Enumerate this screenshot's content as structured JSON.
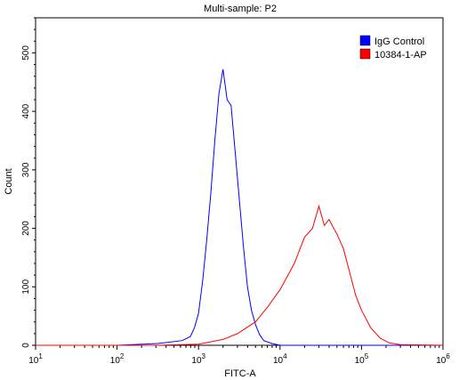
{
  "chart_data": {
    "type": "line",
    "title": "Multi-sample: P2",
    "xlabel": "FITC-A",
    "ylabel": "Count",
    "x_scale": "log",
    "xlim": [
      10,
      1000000
    ],
    "ylim": [
      0,
      560
    ],
    "x_ticks": [
      {
        "value": 10,
        "base": "10",
        "exp": "1"
      },
      {
        "value": 100,
        "base": "10",
        "exp": "2"
      },
      {
        "value": 1000,
        "base": "10",
        "exp": "3"
      },
      {
        "value": 10000,
        "base": "10",
        "exp": "4"
      },
      {
        "value": 100000,
        "base": "10",
        "exp": "5"
      },
      {
        "value": 1000000,
        "base": "10",
        "exp": "6"
      }
    ],
    "y_ticks": [
      0,
      100,
      200,
      300,
      400,
      500
    ],
    "grid": false,
    "legend_position": "top-right",
    "series": [
      {
        "name": "IgG Control",
        "color": "#0000ff",
        "x": [
          10,
          100,
          316,
          631,
          794,
          891,
          1000,
          1122,
          1259,
          1413,
          1585,
          1778,
          1995,
          2239,
          2512,
          2818,
          3162,
          3548,
          3981,
          4467,
          5012,
          5623,
          6310,
          7943,
          10000,
          1000000
        ],
        "y": [
          0,
          0,
          3,
          8,
          15,
          30,
          55,
          110,
          180,
          260,
          350,
          430,
          472,
          420,
          410,
          330,
          250,
          170,
          100,
          60,
          35,
          18,
          8,
          3,
          0,
          0
        ]
      },
      {
        "name": "10384-1-AP",
        "color": "#ff0000",
        "x": [
          10,
          316,
          1000,
          2000,
          3000,
          5000,
          7000,
          10000,
          15000,
          20000,
          25000,
          30000,
          35000,
          40000,
          50000,
          60000,
          70000,
          85000,
          100000,
          130000,
          170000,
          220000,
          300000,
          1000000
        ],
        "y": [
          0,
          0,
          2,
          10,
          20,
          40,
          65,
          95,
          140,
          185,
          200,
          238,
          205,
          215,
          190,
          165,
          130,
          85,
          60,
          30,
          12,
          4,
          1,
          0
        ]
      }
    ]
  }
}
